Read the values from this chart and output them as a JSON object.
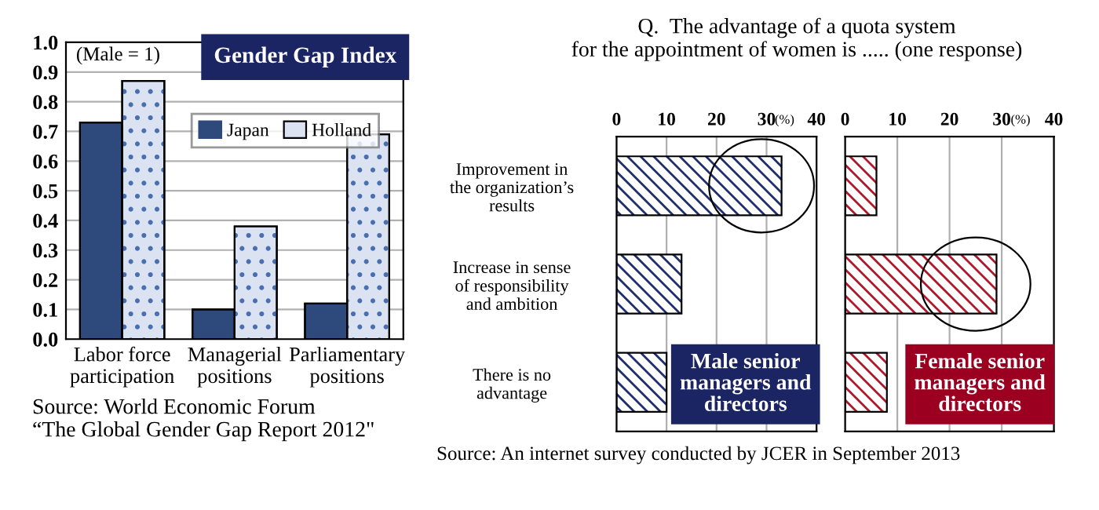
{
  "chart_data": [
    {
      "type": "bar",
      "title": "Gender Gap Index",
      "categories": [
        "Labor force\nparticipation",
        "Managerial\npositions",
        "Parliamentary\npositions"
      ],
      "series": [
        {
          "name": "Japan",
          "color": "#2e4a7d",
          "values": [
            0.73,
            0.1,
            0.12
          ]
        },
        {
          "name": "Holland",
          "color": "#dbe3f2",
          "values": [
            0.87,
            0.38,
            0.69
          ]
        }
      ],
      "ylim": [
        0,
        1
      ],
      "yticks": [
        {
          "value": 0,
          "label": "0.0"
        },
        0.1,
        0.2,
        0.3,
        0.4,
        0.5,
        0.6,
        0.7,
        0.8,
        0.9,
        {
          "value": 1,
          "label": "1.0"
        }
      ],
      "grid": "y",
      "legend": "top",
      "annotations": [
        "(Male = 1)",
        "Source: World Economic Forum\n“The Global Gender Gap Report 2012\""
      ]
    },
    {
      "type": "bar",
      "orientation": "horizontal",
      "title": "Q.  The advantage of a quota system\nfor the appointment of women is ..... (one response)",
      "categories": [
        "Improvement in\nthe organization’s\nresults",
        "Increase in sense\nof responsibility\nand ambition",
        "There is no\nadvantage"
      ],
      "series": [
        {
          "color": "#1f2f6e",
          "values": [
            33,
            13,
            10
          ]
        }
      ],
      "xlim": [
        0,
        40
      ],
      "xticks": [
        0,
        10,
        20,
        30,
        40
      ],
      "xlabel": "(%)",
      "grid": "x",
      "annotations": [
        "Male senior\nmanagers and\ndirectors",
        "Source: An internet survey conducted by JCER in September 2013"
      ]
    },
    {
      "type": "bar",
      "orientation": "horizontal",
      "categories": [
        null,
        null,
        null
      ],
      "series": [
        {
          "color": "#b0182a",
          "values": [
            6,
            29,
            8
          ]
        }
      ],
      "xlim": [
        0,
        40
      ],
      "xticks": [
        0,
        10,
        20,
        30,
        40
      ],
      "xlabel": "(%)",
      "grid": "x",
      "annotations": [
        "Female senior\nmanagers and\ndirectors"
      ]
    }
  ]
}
